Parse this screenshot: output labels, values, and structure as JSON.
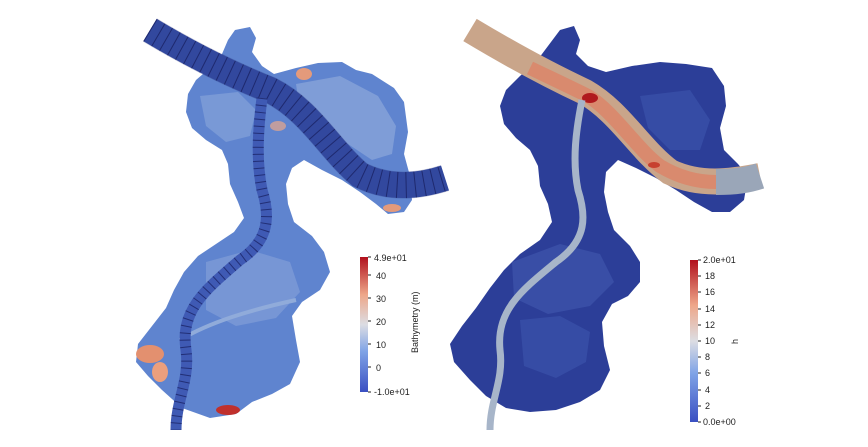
{
  "left_panel": {
    "colorbar": {
      "title": "Bathymetry (m)",
      "max_label": "4.9e+01",
      "min_label": "-1.0e+01",
      "ticks": [
        "40",
        "30",
        "20",
        "10",
        "0"
      ]
    }
  },
  "right_panel": {
    "colorbar": {
      "title": "h",
      "max_label": "2.0e+01",
      "min_label": "0.0e+00",
      "ticks": [
        "18",
        "16",
        "14",
        "12",
        "10",
        "8",
        "6",
        "4",
        "2"
      ]
    }
  },
  "colors": {
    "deep_blue": "#2b3d96",
    "mid_blue": "#5a7fc8",
    "light_blue": "#8fb0e0",
    "pale": "#d8dde6",
    "salmon": "#e4a88c",
    "red": "#b0161e",
    "river_gray": "#a8b6c8",
    "river_tan": "#c9a58a"
  }
}
